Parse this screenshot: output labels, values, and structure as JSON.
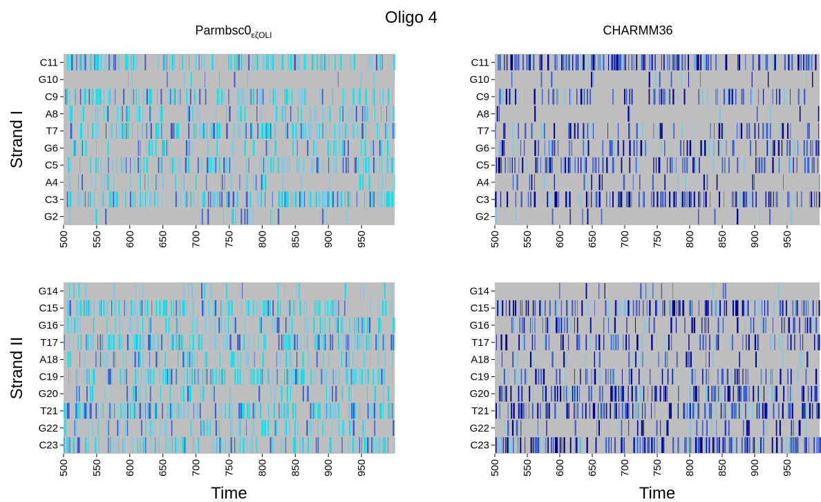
{
  "title": "Oligo 4",
  "colors": {
    "background": "#bebebe",
    "light": "#7ec8e3",
    "cyan": "#00e5ee",
    "mid": "#3a5fcd",
    "dark": "#00008b"
  },
  "chart_data": [
    {
      "type": "heatmap",
      "panel": "top-left",
      "title_main": "Parmbsc0",
      "title_sub": "εζOLI",
      "ylabel": "Strand I",
      "xlabel": "",
      "categories": [
        "C11",
        "G10",
        "C9",
        "A8",
        "T7",
        "G6",
        "C5",
        "A4",
        "C3",
        "G2"
      ],
      "xlim": [
        500,
        1000
      ],
      "xticks": [
        "500",
        "550",
        "600",
        "650",
        "700",
        "750",
        "800",
        "850",
        "900",
        "950"
      ],
      "style": "cyan",
      "density": [
        0.45,
        0.05,
        0.4,
        0.3,
        0.55,
        0.22,
        0.4,
        0.18,
        0.55,
        0.08
      ]
    },
    {
      "type": "heatmap",
      "panel": "top-right",
      "title_main": "CHARMM36",
      "title_sub": "",
      "ylabel": "",
      "xlabel": "",
      "categories": [
        "C11",
        "G10",
        "C9",
        "A8",
        "T7",
        "G6",
        "C5",
        "A4",
        "C3",
        "G2"
      ],
      "xlim": [
        500,
        1000
      ],
      "xticks": [
        "500",
        "550",
        "600",
        "650",
        "700",
        "750",
        "800",
        "850",
        "900",
        "950"
      ],
      "style": "blue",
      "density": [
        0.6,
        0.06,
        0.3,
        0.04,
        0.25,
        0.35,
        0.4,
        0.1,
        0.45,
        0.05
      ]
    },
    {
      "type": "heatmap",
      "panel": "bottom-left",
      "title_main": "",
      "title_sub": "",
      "ylabel": "Strand II",
      "xlabel": "Time",
      "categories": [
        "G14",
        "C15",
        "G16",
        "T17",
        "A18",
        "C19",
        "G20",
        "T21",
        "G22",
        "C23"
      ],
      "xlim": [
        500,
        1000
      ],
      "xticks": [
        "500",
        "550",
        "600",
        "650",
        "700",
        "750",
        "800",
        "850",
        "900",
        "950"
      ],
      "style": "cyan",
      "density": [
        0.1,
        0.5,
        0.35,
        0.6,
        0.3,
        0.5,
        0.2,
        0.6,
        0.3,
        0.5
      ]
    },
    {
      "type": "heatmap",
      "panel": "bottom-right",
      "title_main": "",
      "title_sub": "",
      "ylabel": "",
      "xlabel": "Time",
      "categories": [
        "G14",
        "C15",
        "G16",
        "T17",
        "A18",
        "C19",
        "G20",
        "T21",
        "G22",
        "C23"
      ],
      "xlim": [
        500,
        1000
      ],
      "xticks": [
        "500",
        "550",
        "600",
        "650",
        "700",
        "750",
        "800",
        "850",
        "900",
        "950"
      ],
      "style": "blue",
      "density": [
        0.05,
        0.5,
        0.3,
        0.3,
        0.15,
        0.3,
        0.55,
        0.6,
        0.2,
        0.65
      ]
    }
  ]
}
